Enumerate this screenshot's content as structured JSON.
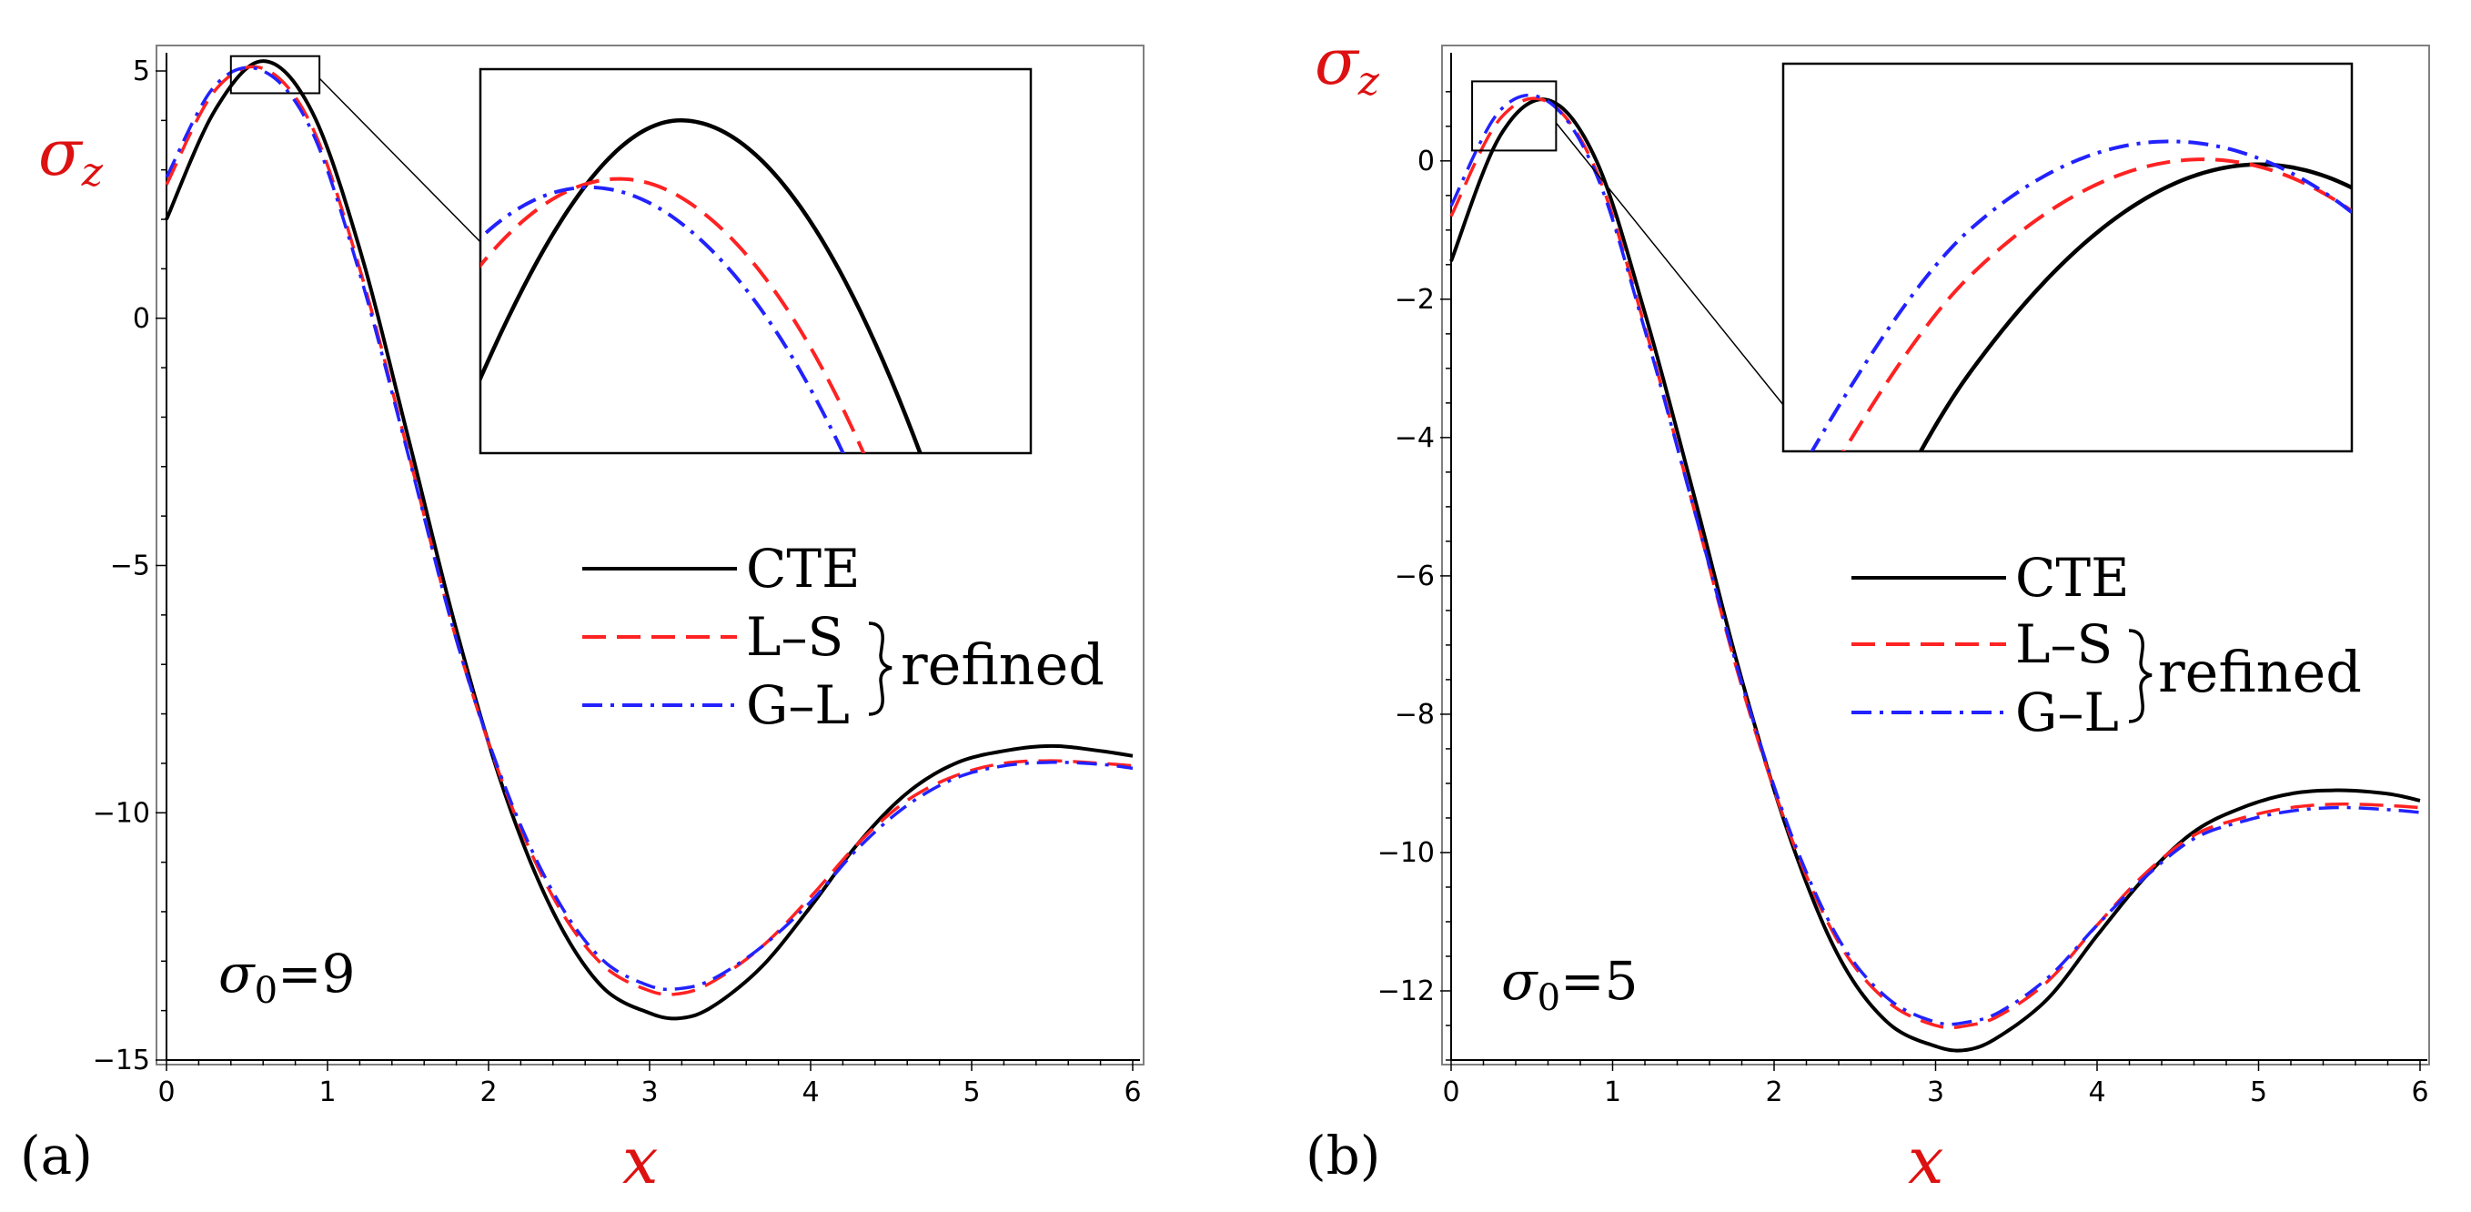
{
  "figure": {
    "colors": {
      "CTE": "#000000",
      "L-S": "#ff2222",
      "G-L": "#2222ff",
      "axis_label": "#dd1111"
    }
  },
  "chart_data": [
    {
      "type": "line",
      "panel_label": "(a)",
      "xlabel": "x",
      "ylabel_base": "σ",
      "ylabel_sub": "z",
      "annotation_base": "σ",
      "annotation_sub": "0",
      "annotation_value": "=9",
      "xlim": [
        0,
        6
      ],
      "ylim": [
        -15,
        5
      ],
      "xticks": [
        0,
        1,
        2,
        3,
        4,
        5,
        6
      ],
      "yticks": [
        5,
        0,
        -5,
        -10,
        -15
      ],
      "legend": {
        "entries": [
          "CTE",
          "L–S",
          "G–L"
        ],
        "group_label": "refined",
        "location": "center-right"
      },
      "inset": {
        "xlim": [
          0.4,
          0.95
        ],
        "ylim": [
          4.55,
          5.3
        ]
      },
      "series": [
        {
          "name": "CTE",
          "style": "solid",
          "x": [
            0,
            0.3,
            0.6,
            0.9,
            1.2,
            1.5,
            1.8,
            2.1,
            2.4,
            2.7,
            3.0,
            3.2,
            3.4,
            3.7,
            4.0,
            4.3,
            4.6,
            4.9,
            5.2,
            5.5,
            5.8,
            6.0
          ],
          "y": [
            2.0,
            4.2,
            5.2,
            4.2,
            1.4,
            -2.4,
            -6.3,
            -9.6,
            -12.0,
            -13.5,
            -14.05,
            -14.15,
            -13.9,
            -13.1,
            -11.9,
            -10.6,
            -9.6,
            -9.0,
            -8.75,
            -8.65,
            -8.75,
            -8.85
          ]
        },
        {
          "name": "L–S",
          "style": "dashed",
          "x": [
            0,
            0.3,
            0.6,
            0.9,
            1.2,
            1.5,
            1.8,
            2.1,
            2.4,
            2.7,
            3.0,
            3.2,
            3.4,
            3.7,
            4.0,
            4.3,
            4.6,
            4.9,
            5.2,
            5.5,
            5.8,
            6.0
          ],
          "y": [
            2.7,
            4.6,
            5.05,
            3.9,
            1.0,
            -2.7,
            -6.5,
            -9.5,
            -11.7,
            -13.05,
            -13.6,
            -13.65,
            -13.4,
            -12.7,
            -11.7,
            -10.6,
            -9.75,
            -9.25,
            -9.0,
            -8.95,
            -9.0,
            -9.05
          ]
        },
        {
          "name": "G–L",
          "style": "dashdot",
          "x": [
            0,
            0.3,
            0.6,
            0.9,
            1.2,
            1.5,
            1.8,
            2.1,
            2.4,
            2.7,
            3.0,
            3.2,
            3.4,
            3.7,
            4.0,
            4.3,
            4.6,
            4.9,
            5.2,
            5.5,
            5.8,
            6.0
          ],
          "y": [
            2.85,
            4.7,
            5.0,
            3.8,
            0.9,
            -2.75,
            -6.5,
            -9.45,
            -11.6,
            -12.95,
            -13.5,
            -13.55,
            -13.35,
            -12.7,
            -11.8,
            -10.7,
            -9.85,
            -9.3,
            -9.05,
            -8.98,
            -9.02,
            -9.1
          ]
        }
      ]
    },
    {
      "type": "line",
      "panel_label": "(b)",
      "xlabel": "x",
      "ylabel_base": "σ",
      "ylabel_sub": "z",
      "annotation_base": "σ",
      "annotation_sub": "0",
      "annotation_value": "=5",
      "xlim": [
        0,
        6
      ],
      "ylim": [
        -13,
        1.3
      ],
      "xticks": [
        0,
        1,
        2,
        3,
        4,
        5,
        6
      ],
      "yticks": [
        0,
        -2,
        -4,
        -6,
        -8,
        -10,
        -12
      ],
      "legend": {
        "entries": [
          "CTE",
          "L–S",
          "G–L"
        ],
        "group_label": "refined",
        "location": "center-right"
      },
      "inset": {
        "xlim": [
          0.13,
          0.65
        ],
        "ylim": [
          0.15,
          1.15
        ]
      },
      "series": [
        {
          "name": "CTE",
          "style": "solid",
          "x": [
            0,
            0.3,
            0.6,
            0.9,
            1.2,
            1.5,
            1.8,
            2.1,
            2.4,
            2.7,
            3.0,
            3.2,
            3.4,
            3.7,
            4.0,
            4.3,
            4.6,
            4.9,
            5.2,
            5.5,
            5.8,
            6.0
          ],
          "y": [
            -1.45,
            0.35,
            0.88,
            0.0,
            -2.2,
            -4.8,
            -7.5,
            -9.8,
            -11.5,
            -12.45,
            -12.8,
            -12.85,
            -12.65,
            -12.1,
            -11.2,
            -10.35,
            -9.7,
            -9.35,
            -9.15,
            -9.1,
            -9.15,
            -9.25
          ]
        },
        {
          "name": "L–S",
          "style": "dashed",
          "x": [
            0,
            0.3,
            0.6,
            0.9,
            1.2,
            1.5,
            1.8,
            2.1,
            2.4,
            2.7,
            3.0,
            3.2,
            3.4,
            3.7,
            4.0,
            4.3,
            4.6,
            4.9,
            5.2,
            5.5,
            5.8,
            6.0
          ],
          "y": [
            -0.8,
            0.6,
            0.85,
            -0.15,
            -2.4,
            -5.0,
            -7.6,
            -9.75,
            -11.3,
            -12.15,
            -12.5,
            -12.5,
            -12.35,
            -11.85,
            -11.05,
            -10.3,
            -9.75,
            -9.5,
            -9.35,
            -9.3,
            -9.32,
            -9.35
          ]
        },
        {
          "name": "G–L",
          "style": "dashdot",
          "x": [
            0,
            0.3,
            0.6,
            0.9,
            1.2,
            1.5,
            1.8,
            2.1,
            2.4,
            2.7,
            3.0,
            3.2,
            3.4,
            3.7,
            4.0,
            4.3,
            4.6,
            4.9,
            5.2,
            5.5,
            5.8,
            6.0
          ],
          "y": [
            -0.65,
            0.72,
            0.86,
            -0.2,
            -2.45,
            -5.0,
            -7.55,
            -9.7,
            -11.25,
            -12.1,
            -12.45,
            -12.45,
            -12.3,
            -11.8,
            -11.05,
            -10.35,
            -9.8,
            -9.55,
            -9.4,
            -9.35,
            -9.38,
            -9.42
          ]
        }
      ]
    }
  ]
}
